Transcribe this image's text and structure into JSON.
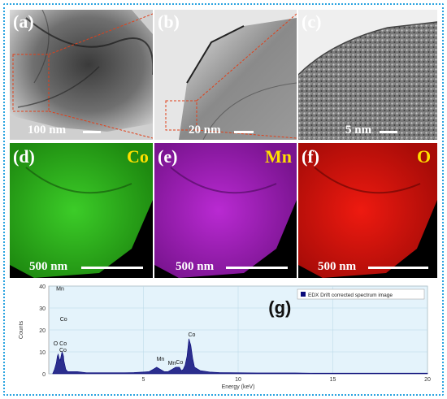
{
  "panels": {
    "a": {
      "label": "(a)",
      "scale": "100 nm"
    },
    "b": {
      "label": "(b)",
      "scale": "20 nm"
    },
    "c": {
      "label": "(c)",
      "scale": "5 nm"
    },
    "d": {
      "label": "(d)",
      "element": "Co",
      "scale": "500 nm"
    },
    "e": {
      "label": "(e)",
      "element": "Mn",
      "scale": "500 nm"
    },
    "f": {
      "label": "(f)",
      "element": "O",
      "scale": "500 nm"
    },
    "g": {
      "label": "(g)"
    }
  },
  "colors": {
    "frame": "#29a3e0",
    "co_map": "#2fbf1a",
    "mn_map": "#a81fc0",
    "o_map": "#e0140e",
    "element_label": "#ffe000",
    "spectrum": "#0a0a7a",
    "plot_bg": "#e4f3fb"
  },
  "chart_data": {
    "type": "line",
    "title": "",
    "xlabel": "Energy (keV)",
    "ylabel": "Counts",
    "xlim": [
      0,
      20
    ],
    "ylim": [
      0,
      40
    ],
    "xticks": [
      5,
      10,
      15,
      20
    ],
    "yticks": [
      0,
      10,
      20,
      30,
      40
    ],
    "grid": true,
    "legend_position": "top-right",
    "series": [
      {
        "name": "EDX Drift corrected spectrum image",
        "x": [
          0.2,
          0.3,
          0.4,
          0.45,
          0.5,
          0.55,
          0.6,
          0.65,
          0.7,
          0.75,
          0.78,
          0.8,
          0.85,
          0.9,
          1.0,
          1.2,
          1.5,
          2.0,
          2.5,
          3.0,
          3.5,
          4.0,
          4.5,
          5.0,
          5.3,
          5.5,
          5.7,
          5.9,
          6.1,
          6.3,
          6.5,
          6.7,
          6.9,
          7.0,
          7.1,
          7.2,
          7.3,
          7.4,
          7.5,
          7.6,
          7.7,
          8.0,
          8.5,
          9.0,
          10.0,
          11.0,
          12.0,
          13.0,
          14.0,
          15.0,
          16.0,
          17.0,
          18.0,
          19.0,
          20.0
        ],
        "y": [
          0,
          2,
          5,
          8,
          9,
          7,
          6,
          8,
          10,
          9,
          8,
          6,
          4,
          2,
          1,
          1,
          1,
          0.5,
          0.5,
          0.5,
          0.5,
          0.5,
          0.6,
          0.8,
          1,
          2,
          3,
          2,
          1,
          1,
          2,
          3,
          3,
          1.5,
          2,
          4,
          8,
          16,
          13,
          7,
          3,
          1.5,
          0.8,
          0.6,
          0.5,
          0.4,
          0.4,
          0.4,
          0.3,
          0.3,
          0.3,
          0.3,
          0.3,
          0.3,
          0.3
        ]
      }
    ],
    "annotations": [
      {
        "text": "Mn",
        "x": 0.6,
        "y": 38
      },
      {
        "text": "Co",
        "x": 0.78,
        "y": 24
      },
      {
        "text": "O Co",
        "x": 0.6,
        "y": 13
      },
      {
        "text": "Co",
        "x": 0.75,
        "y": 10
      },
      {
        "text": "Mn",
        "x": 5.9,
        "y": 6
      },
      {
        "text": "Mn",
        "x": 6.5,
        "y": 4
      },
      {
        "text": "Co",
        "x": 6.9,
        "y": 4.5
      },
      {
        "text": "Co",
        "x": 7.55,
        "y": 17
      }
    ]
  }
}
